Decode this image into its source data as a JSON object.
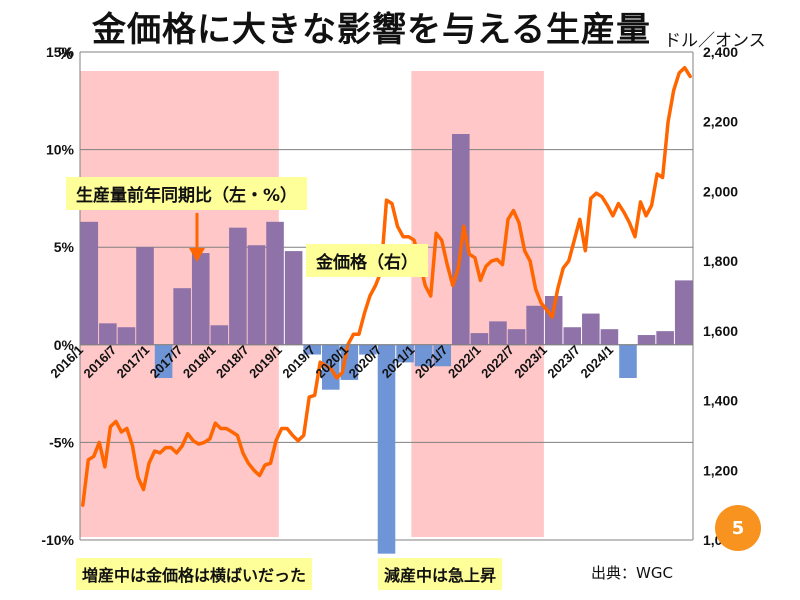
{
  "page": {
    "title": "金価格に大きな影響を与える生産量",
    "right_axis_unit": "ドル／オンス",
    "left_axis_unit": "%",
    "notes": {
      "production_series_label": "生産量前年同期比（左・%）",
      "price_series_label": "金価格（右）",
      "flat_during_increase": "増産中は金価格は横ばいだった",
      "surge_during_decrease": "減産中は急上昇"
    },
    "source": "出典：WGC",
    "page_number": "5"
  },
  "colors": {
    "positive_bar": "#8e72a8",
    "negative_bar": "#6f95d6",
    "gold_line": "#ff6600",
    "shade": "#ffc7c7",
    "note_bg": "#ffff99",
    "badge": "#f7931e"
  },
  "chart_data": {
    "type": "bar+line",
    "x_tick_labels": [
      "2016/1",
      "2016/7",
      "2017/1",
      "2017/7",
      "2018/1",
      "2018/7",
      "2019/1",
      "2019/7",
      "2020/1",
      "2020/7",
      "2021/1",
      "2021/7",
      "2022/1",
      "2022/7",
      "2023/1",
      "2023/7",
      "2024/1"
    ],
    "left_axis": {
      "range": [
        -10,
        15
      ],
      "tick_labels": [
        "15%",
        "10%",
        "5%",
        "0%",
        "-5%",
        "-10%"
      ]
    },
    "right_axis": {
      "range": [
        1000,
        2400
      ],
      "tick_labels": [
        "2,400",
        "2,200",
        "2,000",
        "1,800",
        "1,600",
        "1,400",
        "1,200",
        "1,000"
      ]
    },
    "production_yoy_series": {
      "name": "生産量前年同期比",
      "periods": [
        "2016 Q1",
        "2016 Q2",
        "2016 Q3",
        "2016 Q4",
        "2017 Q1",
        "2017 Q2",
        "2017 Q3",
        "2017 Q4",
        "2018 Q1",
        "2018 Q2",
        "2018 Q3",
        "2018 Q4",
        "2019 Q1",
        "2019 Q2",
        "2019 Q3",
        "2019 Q4",
        "2020 Q1",
        "2020 Q2",
        "2020 Q3",
        "2020 Q4",
        "2021 Q1",
        "2021 Q2",
        "2021 Q3",
        "2021 Q4",
        "2022 Q1",
        "2022 Q2",
        "2022 Q3",
        "2022 Q4",
        "2023 Q1",
        "2023 Q2",
        "2023 Q3",
        "2023 Q4",
        "2024 Q1"
      ],
      "values": [
        6.3,
        1.1,
        0.9,
        5.0,
        -1.7,
        2.9,
        4.7,
        1.0,
        6.0,
        5.1,
        6.3,
        4.8,
        -0.5,
        -2.3,
        -1.8,
        -0.5,
        -10.7,
        -0.9,
        -1.1,
        -1.1,
        10.8,
        0.6,
        1.2,
        0.8,
        2.0,
        2.5,
        0.9,
        1.6,
        0.8,
        -1.7,
        0.5,
        0.7,
        3.3
      ]
    },
    "gold_price_series": {
      "name": "金価格",
      "start": "2016/1",
      "frequency": "monthly",
      "values": [
        1100,
        1230,
        1240,
        1280,
        1210,
        1325,
        1340,
        1310,
        1320,
        1270,
        1180,
        1145,
        1220,
        1255,
        1250,
        1265,
        1265,
        1250,
        1270,
        1305,
        1285,
        1275,
        1280,
        1290,
        1335,
        1320,
        1320,
        1310,
        1300,
        1250,
        1220,
        1200,
        1185,
        1215,
        1220,
        1285,
        1320,
        1320,
        1300,
        1285,
        1300,
        1410,
        1415,
        1510,
        1500,
        1490,
        1465,
        1480,
        1560,
        1590,
        1590,
        1650,
        1700,
        1730,
        1770,
        1975,
        1965,
        1900,
        1870,
        1870,
        1860,
        1800,
        1730,
        1700,
        1880,
        1860,
        1790,
        1730,
        1780,
        1900,
        1820,
        1810,
        1745,
        1785,
        1800,
        1805,
        1790,
        1920,
        1945,
        1910,
        1830,
        1800,
        1720,
        1680,
        1660,
        1640,
        1720,
        1780,
        1800,
        1860,
        1920,
        1830,
        1980,
        1995,
        1985,
        1960,
        1930,
        1965,
        1940,
        1910,
        1870,
        1970,
        1930,
        1960,
        2050,
        2040,
        2200,
        2290,
        2340,
        2355,
        2330
      ]
    },
    "shaded_periods": [
      {
        "start": "2016/1",
        "end": "2019/1"
      },
      {
        "start": "2021/1",
        "end": "2023/1"
      }
    ]
  }
}
